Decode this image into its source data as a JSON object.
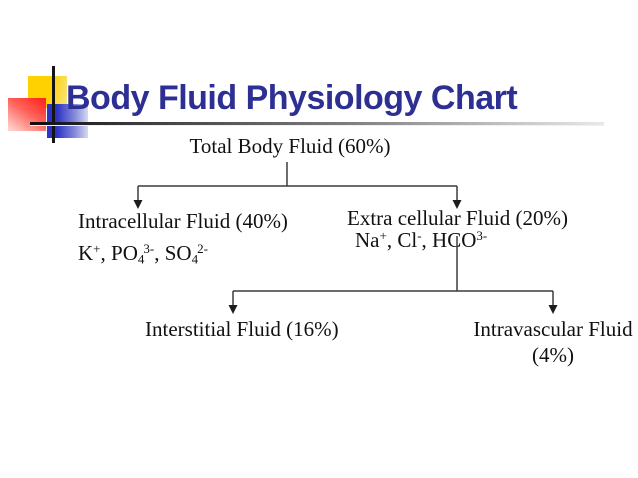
{
  "slide": {
    "title": "Body Fluid Physiology Chart"
  },
  "style": {
    "title_color": "#2d3092",
    "accent_yellow": "#ffd100",
    "accent_red": "#ff2a21",
    "accent_blue": "#2e35c4",
    "connector_color": "#3c3c3c",
    "text_color": "#101010",
    "background": "#ffffff"
  },
  "chart": {
    "type": "tree",
    "root": {
      "label": "Total Body Fluid (60%)"
    },
    "children": [
      {
        "label": "Intracellular Fluid (40%)",
        "ions": [
          {
            "text": "K"
          },
          {
            "text": "+",
            "style": "sup"
          },
          {
            "text": ", PO"
          },
          {
            "text": "4",
            "style": "sub"
          },
          {
            "text": "3-",
            "style": "sup"
          },
          {
            "text": ", SO"
          },
          {
            "text": "4",
            "style": "sub"
          },
          {
            "text": "2-",
            "style": "sup"
          }
        ]
      },
      {
        "label": "Extra cellular Fluid (20%)",
        "ions": [
          {
            "text": "Na"
          },
          {
            "text": "+",
            "style": "sup"
          },
          {
            "text": ", Cl"
          },
          {
            "text": "-",
            "style": "sup"
          },
          {
            "text": ", HCO"
          },
          {
            "text": "3-",
            "style": "sup"
          }
        ],
        "children": [
          {
            "label": "Interstitial Fluid (16%)"
          },
          {
            "label": "Intravascular Fluid",
            "label_line2": "(4%)"
          }
        ]
      }
    ]
  }
}
